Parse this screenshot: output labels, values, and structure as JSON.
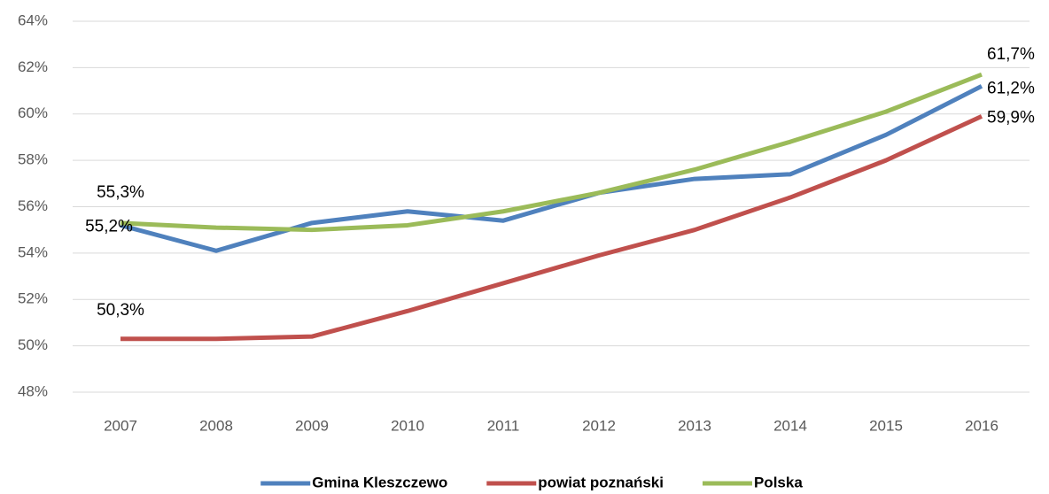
{
  "chart_data": {
    "type": "line",
    "categories": [
      "2007",
      "2008",
      "2009",
      "2010",
      "2011",
      "2012",
      "2013",
      "2014",
      "2015",
      "2016"
    ],
    "series": [
      {
        "name": "Gmina Kleszczewo",
        "color": "#4f81bd",
        "values": [
          55.2,
          54.1,
          55.3,
          55.8,
          55.4,
          56.6,
          57.2,
          57.4,
          59.1,
          61.2
        ],
        "value_labels": [
          "55,2%",
          null,
          null,
          null,
          null,
          null,
          null,
          null,
          null,
          "61,2%"
        ]
      },
      {
        "name": "powiat poznański",
        "color": "#c0504d",
        "values": [
          50.3,
          50.3,
          50.4,
          51.5,
          52.7,
          53.9,
          55.0,
          56.4,
          58.0,
          59.9
        ],
        "value_labels": [
          "50,3%",
          null,
          null,
          null,
          null,
          null,
          null,
          null,
          null,
          "59,9%"
        ]
      },
      {
        "name": "Polska",
        "color": "#9bbb59",
        "values": [
          55.3,
          55.1,
          55.0,
          55.2,
          55.8,
          56.6,
          57.6,
          58.8,
          60.1,
          61.7
        ],
        "value_labels": [
          "55,3%",
          null,
          null,
          null,
          null,
          null,
          null,
          null,
          null,
          "61,7%"
        ]
      }
    ],
    "ylim": [
      48,
      64
    ],
    "yticks": [
      {
        "value": 48,
        "label": "48%"
      },
      {
        "value": 50,
        "label": "50%"
      },
      {
        "value": 52,
        "label": "52%"
      },
      {
        "value": 54,
        "label": "54%"
      },
      {
        "value": 56,
        "label": "56%"
      },
      {
        "value": 58,
        "label": "58%"
      },
      {
        "value": 60,
        "label": "60%"
      },
      {
        "value": 62,
        "label": "62%"
      },
      {
        "value": 64,
        "label": "64%"
      }
    ],
    "grid": true,
    "legend": "bottom"
  }
}
